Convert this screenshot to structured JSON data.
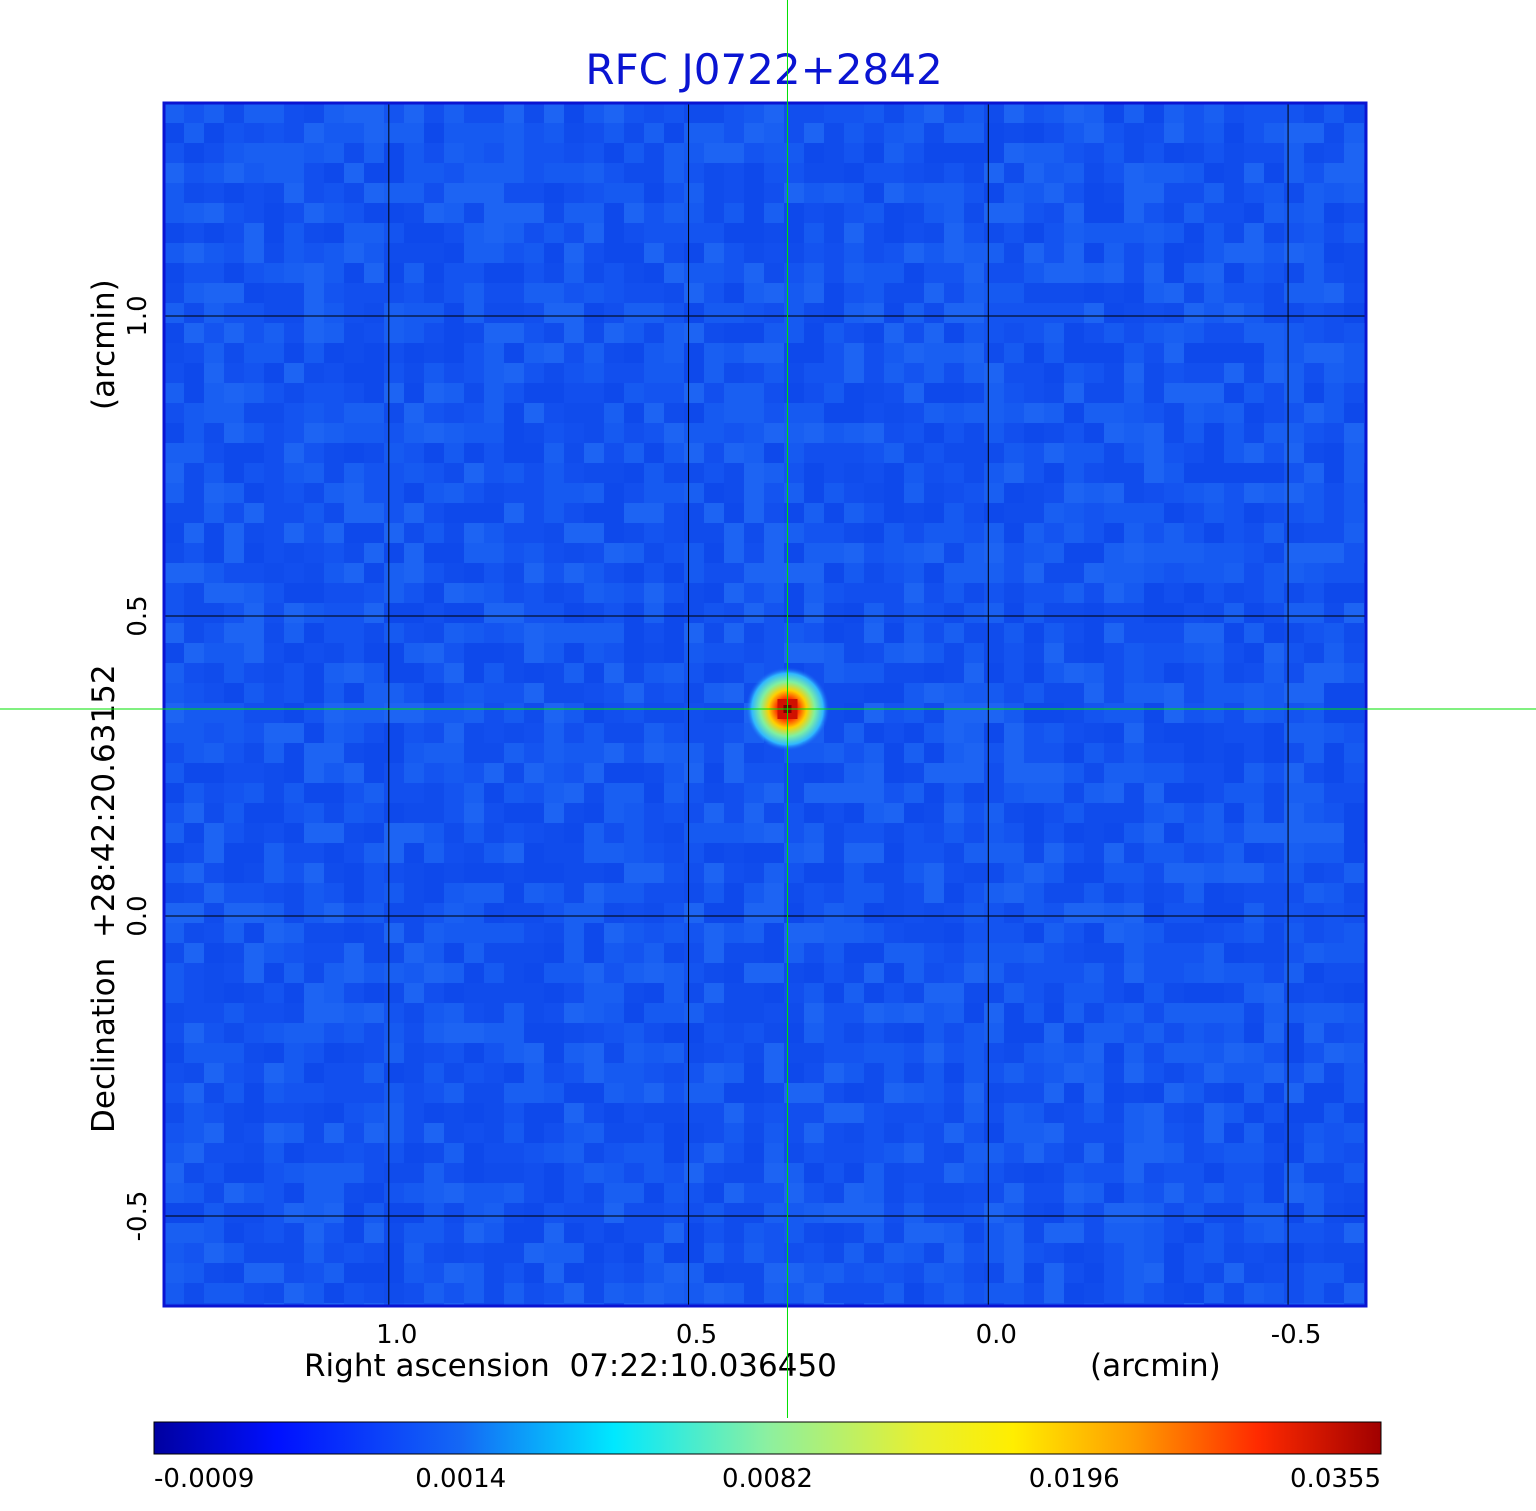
{
  "chart_data": {
    "type": "heatmap",
    "title": "RFC J0722+2842",
    "xlabel": "Right ascension  07:22:10.036450",
    "xunit": "(arcmin)",
    "ylabel": "Declination  +28:42:20.63152",
    "yunit": "(arcmin)",
    "x_ticks": [
      "1.0",
      "0.5",
      "0.0",
      "-0.5"
    ],
    "y_ticks": [
      "1.0",
      "0.5",
      "0.0",
      "-0.5"
    ],
    "x_range": [
      1.375,
      -0.63
    ],
    "y_range": [
      -0.65,
      1.355
    ],
    "grid": true,
    "source": {
      "x": 0.335,
      "y": 0.345,
      "peak": 0.0355
    },
    "colorbar": {
      "ticks": [
        "-0.0009",
        "0.0014",
        "0.0082",
        "0.0196",
        "0.0355"
      ],
      "min": -0.0009,
      "max": 0.0355,
      "colormap": "jet"
    }
  },
  "colors": {
    "title": "#0a14d2",
    "frame": "#0a14d2",
    "background_map": "#1456f0",
    "grid": "#000000",
    "crosshair": "#00e000"
  }
}
